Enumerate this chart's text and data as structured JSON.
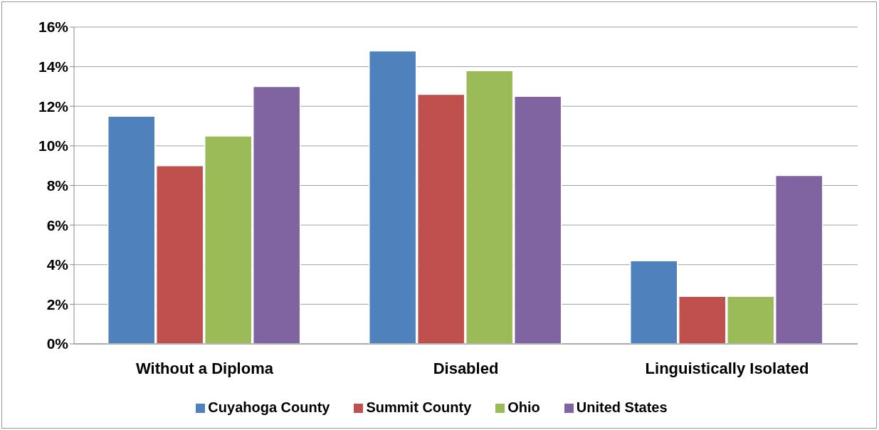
{
  "chart_data": {
    "type": "bar",
    "categories": [
      "Without a Diploma",
      "Disabled",
      "Linguistically Isolated"
    ],
    "series": [
      {
        "name": "Cuyahoga County",
        "color": "#4f81bd",
        "values": [
          11.5,
          14.8,
          4.2
        ]
      },
      {
        "name": "Summit County",
        "color": "#c0504d",
        "values": [
          9.0,
          12.6,
          2.4
        ]
      },
      {
        "name": "Ohio",
        "color": "#9bbb59",
        "values": [
          10.5,
          13.8,
          2.4
        ]
      },
      {
        "name": "United States",
        "color": "#8064a2",
        "values": [
          13.0,
          12.5,
          8.5
        ]
      }
    ],
    "ylim": [
      0,
      16
    ],
    "yticks": [
      {
        "value": 0,
        "label": "0%"
      },
      {
        "value": 2,
        "label": "2%"
      },
      {
        "value": 4,
        "label": "4%"
      },
      {
        "value": 6,
        "label": "6%"
      },
      {
        "value": 8,
        "label": "8%"
      },
      {
        "value": 10,
        "label": "10%"
      },
      {
        "value": 12,
        "label": "12%"
      },
      {
        "value": 14,
        "label": "14%"
      },
      {
        "value": 16,
        "label": "16%"
      }
    ],
    "grid": "y",
    "legend": "bottom"
  }
}
